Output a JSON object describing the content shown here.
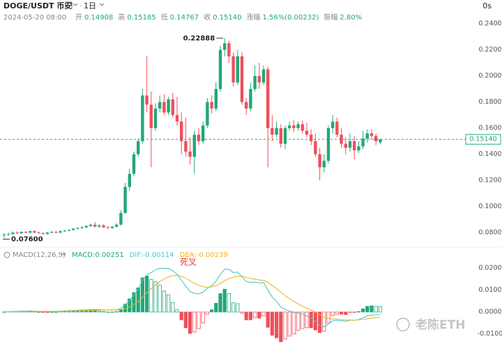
{
  "header": {
    "symbol": "DOGE/USDT 币安",
    "interval": "1日",
    "timer": "0s",
    "date": "2024-05-20 08:00",
    "fields": [
      {
        "label": "开",
        "value": "0.14908"
      },
      {
        "label": "高",
        "value": "0.15185"
      },
      {
        "label": "低",
        "value": "0.14767"
      },
      {
        "label": "收",
        "value": "0.15140"
      },
      {
        "label": "涨幅",
        "value": "1.56%(0.00232)"
      },
      {
        "label": "振幅",
        "value": "2.80%"
      }
    ]
  },
  "watermark": "老陈ETH",
  "chart_data": [
    {
      "type": "candlestick",
      "up_color": "#22a878",
      "down_color": "#ef4f5c",
      "open": [
        0.078,
        0.0785,
        0.079,
        0.08,
        0.0795,
        0.0805,
        0.08,
        0.081,
        0.08,
        0.0795,
        0.079,
        0.08,
        0.0805,
        0.08,
        0.081,
        0.0815,
        0.082,
        0.083,
        0.0835,
        0.084,
        0.085,
        0.086,
        0.0845,
        0.0855,
        0.084,
        0.0835,
        0.0845,
        0.086,
        0.095,
        0.115,
        0.125,
        0.14,
        0.15,
        0.185,
        0.178,
        0.16,
        0.175,
        0.18,
        0.172,
        0.182,
        0.17,
        0.165,
        0.15,
        0.142,
        0.138,
        0.155,
        0.15,
        0.162,
        0.18,
        0.175,
        0.19,
        0.22,
        0.225,
        0.215,
        0.195,
        0.215,
        0.18,
        0.175,
        0.19,
        0.2,
        0.195,
        0.205,
        0.16,
        0.155,
        0.16,
        0.148,
        0.16,
        0.162,
        0.16,
        0.163,
        0.158,
        0.155,
        0.15,
        0.14,
        0.13,
        0.135,
        0.16,
        0.165,
        0.155,
        0.148,
        0.145,
        0.15,
        0.143,
        0.146,
        0.152,
        0.156,
        0.154,
        0.14908
      ],
      "high": [
        0.0795,
        0.0798,
        0.0808,
        0.081,
        0.081,
        0.0812,
        0.0815,
        0.0818,
        0.0808,
        0.0802,
        0.0805,
        0.081,
        0.0812,
        0.0815,
        0.082,
        0.0825,
        0.0835,
        0.084,
        0.0848,
        0.0858,
        0.0868,
        0.088,
        0.0862,
        0.0865,
        0.085,
        0.085,
        0.087,
        0.097,
        0.118,
        0.129,
        0.142,
        0.152,
        0.19,
        0.215,
        0.188,
        0.179,
        0.185,
        0.186,
        0.184,
        0.187,
        0.184,
        0.172,
        0.168,
        0.153,
        0.158,
        0.16,
        0.165,
        0.183,
        0.185,
        0.195,
        0.223,
        0.22888,
        0.227,
        0.218,
        0.22,
        0.218,
        0.183,
        0.195,
        0.208,
        0.21,
        0.208,
        0.207,
        0.17,
        0.165,
        0.163,
        0.162,
        0.165,
        0.166,
        0.165,
        0.166,
        0.164,
        0.159,
        0.156,
        0.145,
        0.14,
        0.162,
        0.17,
        0.168,
        0.16,
        0.153,
        0.156,
        0.154,
        0.15,
        0.158,
        0.159,
        0.159,
        0.156,
        0.15185
      ],
      "low": [
        0.076,
        0.0775,
        0.0782,
        0.0788,
        0.0788,
        0.0795,
        0.0792,
        0.0795,
        0.079,
        0.0785,
        0.0782,
        0.0795,
        0.0795,
        0.0795,
        0.0802,
        0.0808,
        0.0815,
        0.0822,
        0.0828,
        0.0832,
        0.0842,
        0.084,
        0.0838,
        0.0835,
        0.0828,
        0.0828,
        0.0838,
        0.0855,
        0.0945,
        0.112,
        0.123,
        0.138,
        0.148,
        0.172,
        0.13,
        0.158,
        0.172,
        0.17,
        0.17,
        0.168,
        0.162,
        0.14,
        0.138,
        0.132,
        0.125,
        0.147,
        0.148,
        0.16,
        0.171,
        0.173,
        0.188,
        0.215,
        0.21,
        0.192,
        0.193,
        0.178,
        0.17,
        0.173,
        0.188,
        0.19,
        0.193,
        0.13,
        0.15,
        0.153,
        0.145,
        0.144,
        0.158,
        0.157,
        0.158,
        0.156,
        0.153,
        0.147,
        0.138,
        0.12,
        0.126,
        0.133,
        0.156,
        0.153,
        0.145,
        0.14,
        0.142,
        0.136,
        0.141,
        0.144,
        0.149,
        0.151,
        0.147,
        0.14767
      ],
      "close": [
        0.0785,
        0.079,
        0.08,
        0.0795,
        0.0805,
        0.08,
        0.081,
        0.08,
        0.0795,
        0.079,
        0.08,
        0.0805,
        0.08,
        0.081,
        0.0815,
        0.082,
        0.083,
        0.0835,
        0.084,
        0.085,
        0.086,
        0.0845,
        0.0855,
        0.084,
        0.0835,
        0.0845,
        0.086,
        0.095,
        0.115,
        0.125,
        0.14,
        0.15,
        0.185,
        0.178,
        0.16,
        0.175,
        0.18,
        0.172,
        0.182,
        0.17,
        0.165,
        0.15,
        0.142,
        0.138,
        0.155,
        0.15,
        0.162,
        0.18,
        0.175,
        0.19,
        0.22,
        0.225,
        0.215,
        0.195,
        0.215,
        0.18,
        0.175,
        0.19,
        0.2,
        0.195,
        0.205,
        0.16,
        0.155,
        0.16,
        0.148,
        0.16,
        0.162,
        0.16,
        0.163,
        0.158,
        0.155,
        0.15,
        0.14,
        0.13,
        0.135,
        0.16,
        0.165,
        0.155,
        0.148,
        0.145,
        0.15,
        0.143,
        0.146,
        0.152,
        0.156,
        0.154,
        0.15,
        0.1514
      ],
      "ylim": [
        0.0741,
        0.2475
      ],
      "yticks": [
        {
          "value": 0.24,
          "label": "0.24000"
        },
        {
          "value": 0.22,
          "label": "0.22000"
        },
        {
          "value": 0.2,
          "label": "0.20000"
        },
        {
          "value": 0.18,
          "label": "0.18000"
        },
        {
          "value": 0.16,
          "label": "0.16000"
        },
        {
          "value": 0.14,
          "label": "0.14000"
        },
        {
          "value": 0.12,
          "label": "0.12000"
        },
        {
          "value": 0.1,
          "label": "0.10000"
        },
        {
          "value": 0.08,
          "label": "0.08000"
        }
      ],
      "last_price": {
        "value": 0.1514,
        "label": "0.15140"
      },
      "max_label": "0.22888",
      "min_label": "0.07600"
    },
    {
      "type": "macd",
      "title": "MACD(12,26,9)",
      "annotation": "死叉",
      "series": [
        {
          "name": "MACD:0.00251",
          "color": "#22a878",
          "neg_color": "#ef4f5c",
          "values": [
            0,
            0.0002,
            0.0002,
            0.0002,
            0.0004,
            0.0002,
            0.0004,
            0.0002,
            0,
            -0.0002,
            -0.0002,
            0,
            0,
            0.0002,
            0.0002,
            0.0004,
            0.0004,
            0.0006,
            0.0006,
            0.0006,
            0.0006,
            0.0006,
            0.0004,
            0.0002,
            0,
            0,
            0.0002,
            0.0012,
            0.0036,
            0.006,
            0.0088,
            0.011,
            0.0156,
            0.0164,
            0.0148,
            0.0138,
            0.0122,
            0.0096,
            0.0078,
            0.0044,
            0.001,
            -0.0036,
            -0.0072,
            -0.0098,
            -0.0092,
            -0.0076,
            -0.005,
            -0.001,
            0.001,
            0.004,
            0.0084,
            0.0104,
            0.0084,
            0.0042,
            0.0038,
            -0.0006,
            -0.0036,
            -0.0036,
            -0.0026,
            -0.0028,
            -0.0018,
            -0.007,
            -0.0106,
            -0.0118,
            -0.0136,
            -0.0124,
            -0.011,
            -0.01,
            -0.0084,
            -0.0076,
            -0.0072,
            -0.0072,
            -0.0082,
            -0.0094,
            -0.0088,
            -0.005,
            -0.0016,
            -0.001,
            -0.001,
            -0.0012,
            -0.0002,
            -0.0002,
            0.0002,
            0.0014,
            0.0026,
            0.0028,
            0.0026,
            0.00251
          ]
        },
        {
          "name": "DIF:-0.00114",
          "color": "#4cc9c0",
          "values": [
            0.0001,
            0.0002,
            0.0003,
            0.0003,
            0.0004,
            0.0004,
            0.0005,
            0.0004,
            0.0003,
            0.0002,
            0.0002,
            0.0003,
            0.0003,
            0.0004,
            0.0005,
            0.0006,
            0.0007,
            0.0008,
            0.0009,
            0.001,
            0.0011,
            0.0011,
            0.0011,
            0.001,
            0.0009,
            0.0009,
            0.001,
            0.0017,
            0.0033,
            0.0053,
            0.0078,
            0.0103,
            0.0145,
            0.017,
            0.018,
            0.0192,
            0.02,
            0.0198,
            0.0199,
            0.0188,
            0.0172,
            0.0145,
            0.0118,
            0.0093,
            0.0085,
            0.0083,
            0.009,
            0.0108,
            0.012,
            0.014,
            0.0172,
            0.0195,
            0.0195,
            0.018,
            0.0182,
            0.016,
            0.014,
            0.0135,
            0.0137,
            0.0132,
            0.0135,
            0.01,
            0.0068,
            0.0048,
            0.0022,
            0.0012,
            0.0005,
            -0.0002,
            -0.0005,
            -0.0011,
            -0.0018,
            -0.0027,
            -0.0042,
            -0.006,
            -0.0068,
            -0.0055,
            -0.004,
            -0.0038,
            -0.004,
            -0.0042,
            -0.0037,
            -0.0038,
            -0.0035,
            -0.0027,
            -0.0018,
            -0.0014,
            -0.0013,
            -0.00114
          ]
        },
        {
          "name": "DEA:-0.00239",
          "color": "#f0b32a",
          "values": [
            0.0001,
            0.0001,
            0.0002,
            0.0002,
            0.0002,
            0.0003,
            0.0003,
            0.0003,
            0.0003,
            0.0003,
            0.0003,
            0.0003,
            0.0003,
            0.0003,
            0.0004,
            0.0004,
            0.0005,
            0.0005,
            0.0006,
            0.0007,
            0.0008,
            0.0008,
            0.0009,
            0.0009,
            0.0009,
            0.0009,
            0.0009,
            0.0011,
            0.0015,
            0.0023,
            0.0034,
            0.0048,
            0.0067,
            0.0088,
            0.0106,
            0.0123,
            0.0139,
            0.015,
            0.016,
            0.0166,
            0.0167,
            0.0163,
            0.0154,
            0.0142,
            0.0131,
            0.0121,
            0.0115,
            0.0113,
            0.0115,
            0.012,
            0.013,
            0.0143,
            0.0153,
            0.0159,
            0.0163,
            0.0163,
            0.0158,
            0.0153,
            0.015,
            0.0146,
            0.0144,
            0.0135,
            0.0121,
            0.0107,
            0.009,
            0.0074,
            0.006,
            0.0048,
            0.0037,
            0.0027,
            0.0018,
            0.0009,
            -0.0001,
            -0.0013,
            -0.0024,
            -0.003,
            -0.0032,
            -0.0033,
            -0.0035,
            -0.0036,
            -0.0036,
            -0.0037,
            -0.0036,
            -0.0034,
            -0.0031,
            -0.0028,
            -0.0026,
            -0.00239
          ]
        }
      ],
      "ylim": [
        -0.0146,
        0.0232
      ],
      "yticks": [
        {
          "value": 0.02,
          "label": "0.02000"
        },
        {
          "value": 0.01,
          "label": "0.01000"
        },
        {
          "value": 0,
          "label": "0.00000"
        },
        {
          "value": -0.01,
          "label": "-0.01000"
        }
      ]
    }
  ]
}
